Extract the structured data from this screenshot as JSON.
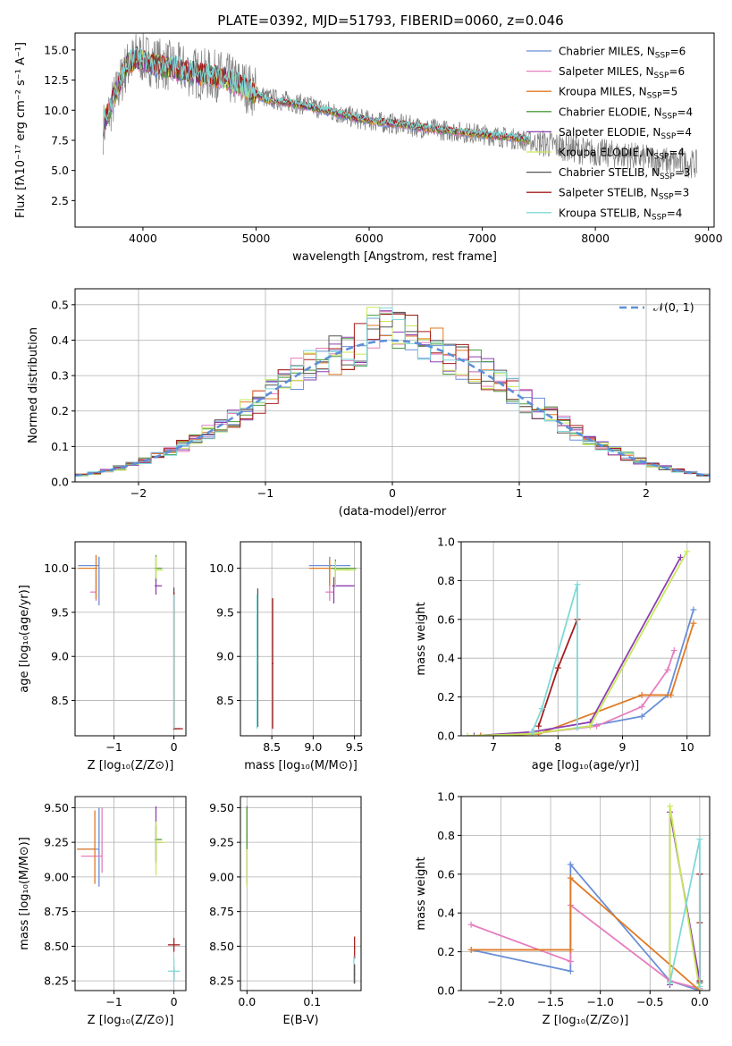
{
  "figure": {
    "title": "PLATE=0392, MJD=51793, FIBERID=0060, z=0.046"
  },
  "legend_series": [
    {
      "name": "Chabrier MILES",
      "nssp": "6",
      "color": "#6a8fd8"
    },
    {
      "name": "Salpeter MILES",
      "nssp": "6",
      "color": "#e57fbf"
    },
    {
      "name": "Kroupa MILES",
      "nssp": "5",
      "color": "#e07a25"
    },
    {
      "name": "Chabrier ELODIE",
      "nssp": "4",
      "color": "#4f9a3c"
    },
    {
      "name": "Salpeter ELODIE",
      "nssp": "4",
      "color": "#8e3fb0"
    },
    {
      "name": "Kroupa ELODIE",
      "nssp": "4",
      "color": "#c7e85a"
    },
    {
      "name": "Chabrier STELIB",
      "nssp": "3",
      "color": "#555555"
    },
    {
      "name": "Salpeter STELIB",
      "nssp": "3",
      "color": "#a51d1d"
    },
    {
      "name": "Kroupa STELIB",
      "nssp": "4",
      "color": "#7fd8d8"
    }
  ],
  "chart_data": [
    {
      "id": "spectrum",
      "type": "line",
      "xlabel": "wavelength [Angstrom, rest frame]",
      "ylabel": "Flux [fλ10⁻¹⁷ erg cm⁻² s⁻¹ A⁻¹]",
      "xlim": [
        3400,
        9050
      ],
      "ylim": [
        0.3,
        16.4
      ],
      "xticks": [
        4000,
        5000,
        6000,
        7000,
        8000,
        9000
      ],
      "yticks": [
        2.5,
        5.0,
        7.5,
        10.0,
        12.5,
        15.0
      ],
      "ytick_labels": [
        "2.5",
        "5.0",
        "7.5",
        "10.0",
        "12.5",
        "15.0"
      ],
      "observed": {
        "color": "#7f7f7f",
        "x": [
          3650,
          3750,
          3850,
          3950,
          4100,
          4300,
          4500,
          4700,
          4900,
          5100,
          5300,
          5500,
          5700,
          5900,
          6100,
          6300,
          6500,
          6700,
          6900,
          7100,
          7300,
          7500,
          7700,
          7900,
          8100,
          8300,
          8500,
          8700,
          8900
        ],
        "y": [
          8.5,
          11.0,
          13.5,
          14.5,
          14.0,
          13.5,
          13.0,
          12.8,
          12.0,
          11.0,
          10.7,
          10.3,
          9.8,
          9.3,
          9.0,
          8.8,
          8.5,
          8.3,
          8.1,
          7.9,
          7.6,
          7.3,
          7.0,
          6.6,
          6.4,
          6.2,
          5.9,
          5.7,
          5.5
        ]
      },
      "model_x": [
        3650,
        3750,
        3850,
        3950,
        4100,
        4300,
        4500,
        4700,
        4900,
        5100,
        5300,
        5500,
        5700,
        5900,
        6100,
        6300,
        6500,
        6700,
        6900,
        7100,
        7300,
        7420
      ],
      "model_y": [
        8.8,
        11.2,
        13.8,
        14.3,
        13.8,
        13.4,
        13.0,
        12.7,
        11.9,
        10.8,
        10.6,
        10.2,
        9.8,
        9.3,
        9.0,
        8.8,
        8.5,
        8.3,
        8.1,
        7.9,
        7.7,
        7.5
      ]
    },
    {
      "id": "residuals",
      "type": "step",
      "xlabel": "(data-model)/error",
      "ylabel": "Normed distribution",
      "xlim": [
        -2.5,
        2.5
      ],
      "ylim": [
        0,
        0.545
      ],
      "xticks": [
        -2,
        -1,
        0,
        1,
        2
      ],
      "xtick_labels": [
        "−2",
        "−1",
        "0",
        "1",
        "2"
      ],
      "yticks": [
        0.0,
        0.1,
        0.2,
        0.3,
        0.4,
        0.5
      ],
      "ytick_labels": [
        "0.0",
        "0.1",
        "0.2",
        "0.3",
        "0.4",
        "0.5"
      ],
      "legend": "𝒩(0, 1)",
      "gaussian_color": "#5b8fd9",
      "bin_width": 0.1
    },
    {
      "id": "age_vs_z",
      "type": "errorbar",
      "xlabel": "Z [log₁₀(Z/Z⊙)]",
      "ylabel": "age  [log₁₀(age/yr)]",
      "xlim": [
        -1.65,
        0.2
      ],
      "ylim": [
        8.1,
        10.3
      ],
      "xticks": [
        -1,
        0
      ],
      "xtick_labels": [
        "−1",
        "0"
      ],
      "yticks": [
        8.5,
        9.0,
        9.5,
        10.0
      ],
      "ytick_labels": [
        "8.5",
        "9.0",
        "9.5",
        "10.0"
      ],
      "points": [
        {
          "s": 0,
          "x": -1.25,
          "y": 10.03,
          "xerr": [
            0.35,
            0.0
          ],
          "yerr": [
            0.45,
            0.1
          ]
        },
        {
          "s": 1,
          "x": -1.3,
          "y": 9.73,
          "xerr": [
            0.1,
            0.0
          ],
          "yerr": [
            0.1,
            0.25
          ]
        },
        {
          "s": 2,
          "x": -1.3,
          "y": 10.0,
          "xerr": [
            0.3,
            0.02
          ],
          "yerr": [
            0.35,
            0.15
          ]
        },
        {
          "s": 3,
          "x": -0.3,
          "y": 10.0,
          "xerr": [
            0.02,
            0.1
          ],
          "yerr": [
            0.15,
            0.15
          ]
        },
        {
          "s": 4,
          "x": -0.3,
          "y": 9.8,
          "xerr": [
            0.02,
            0.1
          ],
          "yerr": [
            0.1,
            0.1
          ]
        },
        {
          "s": 5,
          "x": -0.3,
          "y": 9.98,
          "xerr": [
            0.02,
            0.12
          ],
          "yerr": [
            0.1,
            0.15
          ]
        },
        {
          "s": 6,
          "x": 0.0,
          "y": 8.18,
          "xerr": [
            0.01,
            0.1
          ],
          "yerr": [
            0.01,
            1.6
          ]
        },
        {
          "s": 7,
          "x": 0.0,
          "y": 8.18,
          "xerr": [
            0.01,
            0.15
          ],
          "yerr": [
            0.01,
            1.55
          ]
        },
        {
          "s": 8,
          "x": 0.0,
          "y": 9.6,
          "xerr": [
            0.01,
            0.01
          ],
          "yerr": [
            1.42,
            0.1
          ]
        }
      ]
    },
    {
      "id": "age_vs_mass",
      "type": "errorbar",
      "xlabel": "mass [log₁₀(M/M⊙)]",
      "ylabel": "",
      "xlim": [
        8.12,
        9.58
      ],
      "ylim": [
        8.1,
        10.3
      ],
      "xticks": [
        8.5,
        9.0,
        9.5
      ],
      "xtick_labels": [
        "8.5",
        "9.0",
        "9.5"
      ],
      "yticks": [
        8.5,
        9.0,
        9.5,
        10.0
      ],
      "ytick_labels": [
        "8.5",
        "9.0",
        "9.5",
        "10.0"
      ],
      "points": [
        {
          "s": 0,
          "x": 9.2,
          "y": 10.03,
          "xerr": [
            0.25,
            0.25
          ],
          "yerr": [
            0.2,
            0.1
          ]
        },
        {
          "s": 1,
          "x": 9.2,
          "y": 9.73,
          "xerr": [
            0.05,
            0.05
          ],
          "yerr": [
            0.1,
            0.3
          ]
        },
        {
          "s": 2,
          "x": 9.2,
          "y": 10.0,
          "xerr": [
            0.25,
            0.25
          ],
          "yerr": [
            0.2,
            0.1
          ]
        },
        {
          "s": 3,
          "x": 9.27,
          "y": 10.0,
          "xerr": [
            0.05,
            0.25
          ],
          "yerr": [
            0.2,
            0.1
          ]
        },
        {
          "s": 4,
          "x": 9.25,
          "y": 9.8,
          "xerr": [
            0.02,
            0.25
          ],
          "yerr": [
            0.2,
            0.1
          ]
        },
        {
          "s": 5,
          "x": 9.27,
          "y": 9.98,
          "xerr": [
            0.02,
            0.25
          ],
          "yerr": [
            0.2,
            0.1
          ]
        },
        {
          "s": 6,
          "x": 8.33,
          "y": 9.0,
          "xerr": [
            0.01,
            0.01
          ],
          "yerr": [
            0.8,
            0.77
          ]
        },
        {
          "s": 7,
          "x": 8.51,
          "y": 8.92,
          "xerr": [
            0.01,
            0.01
          ],
          "yerr": [
            0.74,
            0.74
          ]
        },
        {
          "s": 8,
          "x": 8.32,
          "y": 8.95,
          "xerr": [
            0.01,
            0.01
          ],
          "yerr": [
            0.77,
            0.75
          ]
        }
      ]
    },
    {
      "id": "mass_weight_vs_age",
      "type": "line",
      "xlabel": "age  [log₁₀(age/yr)]",
      "ylabel": "mass weight",
      "xlim": [
        6.5,
        10.35
      ],
      "ylim": [
        0.0,
        1.0
      ],
      "xticks": [
        7,
        8,
        9,
        10
      ],
      "xtick_labels": [
        "7",
        "8",
        "9",
        "10"
      ],
      "yticks": [
        0.0,
        0.2,
        0.4,
        0.6,
        0.8,
        1.0
      ],
      "ytick_labels": [
        "0.0",
        "0.2",
        "0.4",
        "0.6",
        "0.8",
        "1.0"
      ],
      "series": [
        {
          "s": 0,
          "x": [
            6.8,
            7.6,
            8.5,
            9.3,
            9.7,
            10.1
          ],
          "y": [
            0.0,
            0.01,
            0.05,
            0.1,
            0.21,
            0.65
          ]
        },
        {
          "s": 1,
          "x": [
            6.8,
            7.6,
            8.6,
            9.3,
            9.7,
            9.8
          ],
          "y": [
            0.0,
            0.01,
            0.05,
            0.15,
            0.34,
            0.44
          ]
        },
        {
          "s": 2,
          "x": [
            6.8,
            7.7,
            9.3,
            9.75,
            10.1
          ],
          "y": [
            0.0,
            0.01,
            0.21,
            0.21,
            0.58
          ]
        },
        {
          "s": 4,
          "x": [
            6.7,
            7.6,
            8.5,
            9.9
          ],
          "y": [
            0.0,
            0.02,
            0.07,
            0.92
          ]
        },
        {
          "s": 5,
          "x": [
            6.6,
            7.6,
            8.5,
            10.0
          ],
          "y": [
            0.0,
            0.01,
            0.05,
            0.95
          ]
        },
        {
          "s": 7,
          "x": [
            7.7,
            8.0,
            8.3
          ],
          "y": [
            0.05,
            0.35,
            0.6
          ]
        },
        {
          "s": 8,
          "x": [
            7.6,
            7.75,
            8.3,
            8.3
          ],
          "y": [
            0.02,
            0.14,
            0.78,
            0.04
          ]
        }
      ]
    },
    {
      "id": "mass_vs_z",
      "type": "errorbar",
      "xlabel": "Z [log₁₀(Z/Z⊙)]",
      "ylabel": "mass [log₁₀(M/M⊙)]",
      "xlim": [
        -1.65,
        0.2
      ],
      "ylim": [
        8.18,
        9.58
      ],
      "xticks": [
        -1,
        0
      ],
      "xtick_labels": [
        "−1",
        "0"
      ],
      "yticks": [
        8.25,
        8.5,
        8.75,
        9.0,
        9.25,
        9.5
      ],
      "ytick_labels": [
        "8.25",
        "8.50",
        "8.75",
        "9.00",
        "9.25",
        "9.50"
      ],
      "points": [
        {
          "s": 0,
          "x": -1.25,
          "y": 9.2,
          "xerr": [
            0.35,
            0.0
          ],
          "yerr": [
            0.27,
            0.3
          ]
        },
        {
          "s": 1,
          "x": -1.2,
          "y": 9.15,
          "xerr": [
            0.35,
            0.0
          ],
          "yerr": [
            0.12,
            0.35
          ]
        },
        {
          "s": 2,
          "x": -1.32,
          "y": 9.2,
          "xerr": [
            0.3,
            0.0
          ],
          "yerr": [
            0.25,
            0.28
          ]
        },
        {
          "s": 3,
          "x": -0.3,
          "y": 9.27,
          "xerr": [
            0.02,
            0.1
          ],
          "yerr": [
            0.15,
            0.1
          ]
        },
        {
          "s": 4,
          "x": -0.3,
          "y": 9.25,
          "xerr": [
            0.02,
            0.12
          ],
          "yerr": [
            0.15,
            0.26
          ]
        },
        {
          "s": 5,
          "x": -0.3,
          "y": 9.25,
          "xerr": [
            0.02,
            0.15
          ],
          "yerr": [
            0.24,
            0.15
          ]
        },
        {
          "s": 6,
          "x": 0.0,
          "y": 8.3,
          "xerr": [
            0.01,
            0.01
          ],
          "yerr": [
            0.05,
            0.05
          ]
        },
        {
          "s": 7,
          "x": 0.0,
          "y": 8.51,
          "xerr": [
            0.1,
            0.1
          ],
          "yerr": [
            0.05,
            0.05
          ]
        },
        {
          "s": 8,
          "x": 0.0,
          "y": 8.32,
          "xerr": [
            0.1,
            0.1
          ],
          "yerr": [
            0.08,
            0.1
          ]
        }
      ]
    },
    {
      "id": "mass_vs_ebv",
      "type": "errorbar",
      "xlabel": "E(B-V)",
      "ylabel": "",
      "xlim": [
        -0.01,
        0.175
      ],
      "ylim": [
        8.18,
        9.58
      ],
      "xticks": [
        0.0,
        0.1
      ],
      "xtick_labels": [
        "0.0",
        "0.1"
      ],
      "yticks": [
        8.25,
        8.5,
        8.75,
        9.0,
        9.25,
        9.5
      ],
      "ytick_labels": [
        "8.25",
        "8.50",
        "8.75",
        "9.00",
        "9.25",
        "9.50"
      ],
      "points": [
        {
          "s": 4,
          "x": 0.0,
          "y": 9.25,
          "xerr": [
            0.001,
            0.001
          ],
          "yerr": [
            0.3,
            0.26
          ]
        },
        {
          "s": 5,
          "x": 0.0,
          "y": 9.2,
          "xerr": [
            0.001,
            0.001
          ],
          "yerr": [
            0.27,
            0.3
          ]
        },
        {
          "s": 3,
          "x": 0.0,
          "y": 9.3,
          "xerr": [
            0.001,
            0.001
          ],
          "yerr": [
            0.1,
            0.2
          ]
        },
        {
          "s": 7,
          "x": 0.165,
          "y": 8.49,
          "xerr": [
            0.001,
            0.001
          ],
          "yerr": [
            0.08,
            0.08
          ]
        },
        {
          "s": 8,
          "x": 0.164,
          "y": 8.33,
          "xerr": [
            0.001,
            0.001
          ],
          "yerr": [
            0.1,
            0.1
          ]
        },
        {
          "s": 6,
          "x": 0.165,
          "y": 8.3,
          "xerr": [
            0.001,
            0.001
          ],
          "yerr": [
            0.07,
            0.07
          ]
        }
      ]
    },
    {
      "id": "mass_weight_vs_z",
      "type": "line",
      "xlabel": "Z [log₁₀(Z/Z⊙)]",
      "ylabel": "mass weight",
      "xlim": [
        -2.4,
        0.1
      ],
      "ylim": [
        0.0,
        1.0
      ],
      "xticks": [
        -2.0,
        -1.5,
        -1.0,
        -0.5,
        0.0
      ],
      "xtick_labels": [
        "−2.0",
        "−1.5",
        "−1.0",
        "−0.5",
        "0.0"
      ],
      "yticks": [
        0.0,
        0.2,
        0.4,
        0.6,
        0.8,
        1.0
      ],
      "ytick_labels": [
        "0.0",
        "0.2",
        "0.4",
        "0.6",
        "0.8",
        "1.0"
      ],
      "series": [
        {
          "s": 0,
          "x": [
            -2.3,
            -1.3,
            -1.3,
            -0.3,
            0.0
          ],
          "y": [
            0.21,
            0.1,
            0.65,
            0.05,
            0.0
          ]
        },
        {
          "s": 1,
          "x": [
            -2.3,
            -1.3,
            -1.3,
            -0.3,
            0.0
          ],
          "y": [
            0.34,
            0.15,
            0.44,
            0.05,
            0.01
          ]
        },
        {
          "s": 2,
          "x": [
            -2.3,
            -1.3,
            -1.3,
            0.0
          ],
          "y": [
            0.21,
            0.21,
            0.58,
            0.0
          ]
        },
        {
          "s": 4,
          "x": [
            -0.3,
            -0.3,
            0.0
          ],
          "y": [
            0.03,
            0.92,
            0.05
          ]
        },
        {
          "s": 5,
          "x": [
            -0.3,
            -0.3,
            0.0
          ],
          "y": [
            0.04,
            0.95,
            0.0
          ]
        },
        {
          "s": 6,
          "x": [
            0.0,
            0.0
          ],
          "y": [
            0.04,
            0.6
          ]
        },
        {
          "s": 7,
          "x": [
            0.0,
            0.0,
            0.0
          ],
          "y": [
            0.05,
            0.35,
            0.6
          ]
        },
        {
          "s": 8,
          "x": [
            -0.3,
            0.0,
            0.0
          ],
          "y": [
            0.04,
            0.78,
            0.02
          ]
        }
      ]
    }
  ]
}
